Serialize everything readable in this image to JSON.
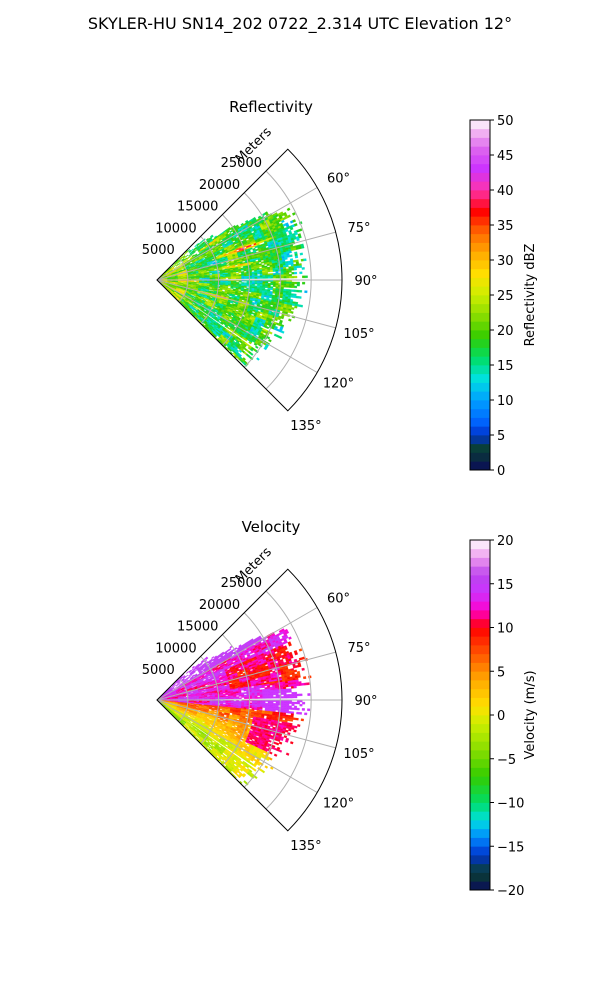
{
  "figure": {
    "title": "SKYLER-HU  SN14_202  0722_2.314 UTC Elevation 12°"
  },
  "chart_data": [
    {
      "type": "heatmap",
      "subtype": "polar-sector (radar PPI)",
      "title": "Reflectivity",
      "radial_label": "Meters",
      "radial_ticks": [
        "5000",
        "10000",
        "15000",
        "20000",
        "25000"
      ],
      "radial_tick_values": [
        5000,
        10000,
        15000,
        20000,
        25000
      ],
      "radial_max": 30000,
      "angle_ticks": [
        "60°",
        "75°",
        "90°",
        "105°",
        "120°",
        "135°"
      ],
      "angle_tick_values": [
        60,
        75,
        90,
        105,
        120,
        135
      ],
      "sector_deg": [
        45,
        135
      ],
      "grid": true,
      "colorbar": {
        "label": "Reflectivity dBZ",
        "range": [
          0,
          50
        ],
        "ticks": [
          "0",
          "5",
          "10",
          "15",
          "20",
          "25",
          "30",
          "35",
          "40",
          "45",
          "50"
        ],
        "tick_values": [
          0,
          5,
          10,
          15,
          20,
          25,
          30,
          35,
          40,
          45,
          50
        ],
        "stops": [
          [
            0,
            "#0a0a5a"
          ],
          [
            3,
            "#0a4030"
          ],
          [
            5,
            "#0033cc"
          ],
          [
            7,
            "#0066ff"
          ],
          [
            10,
            "#00a0ff"
          ],
          [
            13,
            "#00e0e0"
          ],
          [
            16,
            "#00dd66"
          ],
          [
            19,
            "#33cc00"
          ],
          [
            22,
            "#88dd00"
          ],
          [
            25,
            "#ccee00"
          ],
          [
            28,
            "#ffe000"
          ],
          [
            31,
            "#ffaa00"
          ],
          [
            34,
            "#ff6600"
          ],
          [
            37,
            "#ff0000"
          ],
          [
            40,
            "#ff33aa"
          ],
          [
            43,
            "#cc33ff"
          ],
          [
            46,
            "#dd66ee"
          ],
          [
            48,
            "#f0aaf0"
          ],
          [
            50,
            "#ffffff"
          ]
        ]
      },
      "field_range_dbz": [
        10,
        40
      ],
      "typical_dbz": 20
    },
    {
      "type": "heatmap",
      "subtype": "polar-sector (radar PPI)",
      "title": "Velocity",
      "radial_label": "Meters",
      "radial_ticks": [
        "5000",
        "10000",
        "15000",
        "20000",
        "25000"
      ],
      "radial_tick_values": [
        5000,
        10000,
        15000,
        20000,
        25000
      ],
      "radial_max": 30000,
      "angle_ticks": [
        "60°",
        "75°",
        "90°",
        "105°",
        "120°",
        "135°"
      ],
      "angle_tick_values": [
        60,
        75,
        90,
        105,
        120,
        135
      ],
      "sector_deg": [
        45,
        135
      ],
      "grid": true,
      "colorbar": {
        "label": "Velocity (m/s)",
        "range": [
          -20,
          20
        ],
        "ticks": [
          "−20",
          "−15",
          "−10",
          "−5",
          "0",
          "5",
          "10",
          "15",
          "20"
        ],
        "tick_values": [
          -20,
          -15,
          -10,
          -5,
          0,
          5,
          10,
          15,
          20
        ],
        "stops": [
          [
            -20,
            "#0a0a5a"
          ],
          [
            -18,
            "#0a4030"
          ],
          [
            -16,
            "#0033cc"
          ],
          [
            -14,
            "#0088ff"
          ],
          [
            -12,
            "#00e0e0"
          ],
          [
            -10,
            "#00dd66"
          ],
          [
            -7,
            "#33cc00"
          ],
          [
            -4,
            "#88dd00"
          ],
          [
            -1,
            "#ccee00"
          ],
          [
            1,
            "#ffe000"
          ],
          [
            4,
            "#ffaa00"
          ],
          [
            7,
            "#ff5500"
          ],
          [
            10,
            "#ff0000"
          ],
          [
            12,
            "#ff00cc"
          ],
          [
            14,
            "#cc33ff"
          ],
          [
            16,
            "#bb44ee"
          ],
          [
            18,
            "#ee99ee"
          ],
          [
            20,
            "#ffffff"
          ]
        ]
      },
      "field_range_ms": [
        -8,
        20
      ],
      "pattern": "positive (magenta/red) north of 95°, approaching yellow/orange to the south"
    }
  ]
}
